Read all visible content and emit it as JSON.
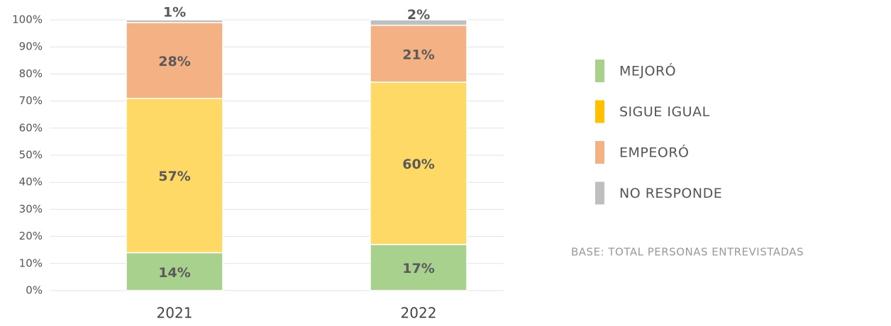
{
  "chart_data": {
    "type": "stacked_bar",
    "categories": [
      "2021",
      "2022"
    ],
    "series": [
      {
        "name": "MEJORÓ",
        "color": "#a9d18e",
        "values": [
          14,
          17
        ],
        "value_labels": [
          "14%",
          "17%"
        ]
      },
      {
        "name": "SIGUE IGUAL",
        "color": "#ffd966",
        "legend_color": "#ffc000",
        "values": [
          57,
          60
        ],
        "value_labels": [
          "57%",
          "60%"
        ]
      },
      {
        "name": "EMPEORÓ",
        "color": "#f4b183",
        "values": [
          28,
          21
        ],
        "value_labels": [
          "28%",
          "21%"
        ]
      },
      {
        "name": "NO RESPONDE",
        "color": "#bfbfbf",
        "values": [
          1,
          2
        ],
        "value_labels": [
          "1%",
          "2%"
        ]
      }
    ],
    "ylim": [
      0,
      100
    ],
    "yticks": [
      {
        "value": 0,
        "label": "0%"
      },
      {
        "value": 10,
        "label": "10%"
      },
      {
        "value": 20,
        "label": "20%"
      },
      {
        "value": 30,
        "label": "30%"
      },
      {
        "value": 40,
        "label": "40%"
      },
      {
        "value": 50,
        "label": "50%"
      },
      {
        "value": 60,
        "label": "60%"
      },
      {
        "value": 70,
        "label": "70%"
      },
      {
        "value": 80,
        "label": "80%"
      },
      {
        "value": 90,
        "label": "90%"
      },
      {
        "value": 100,
        "label": "100%"
      }
    ],
    "grid": true,
    "legend": "right",
    "note": "BASE: TOTAL PERSONAS ENTREVISTADAS"
  }
}
